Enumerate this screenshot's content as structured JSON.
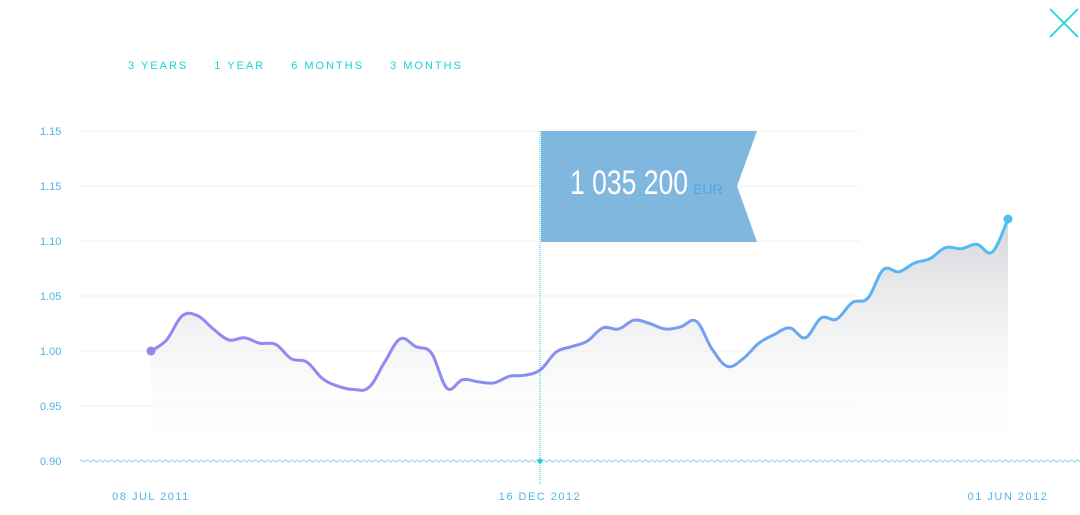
{
  "tabs": [
    {
      "label": "3 YEARS"
    },
    {
      "label": "1 YEAR"
    },
    {
      "label": "6 MONTHS"
    },
    {
      "label": "3 MONTHS"
    }
  ],
  "close_icon": "close-icon",
  "colors": {
    "accent": "#19d3d6",
    "axis_text": "#4fb4e8",
    "line_start": "#9b84f0",
    "line_end": "#4cc0f2",
    "flag": "#7fb7df",
    "area": "#d8d9de"
  },
  "tooltip": {
    "value": "1 035 200",
    "unit": "EUR",
    "date": "16 DEC 2012"
  },
  "chart_data": {
    "type": "area",
    "y_ticks": [
      "1.15",
      "1.15",
      "1.10",
      "1.05",
      "1.00",
      "0.95",
      "0.90"
    ],
    "ylim": [
      0.9,
      1.15
    ],
    "x_labels": [
      "08 JUL 2011",
      "16 DEC 2012",
      "01 JUN 2012"
    ],
    "grid": true,
    "series": [
      {
        "values": [
          1.0,
          1.01,
          1.032,
          1.032,
          1.02,
          1.01,
          1.012,
          1.007,
          1.006,
          0.993,
          0.99,
          0.975,
          0.968,
          0.965,
          0.967,
          0.99,
          1.011,
          1.004,
          0.998,
          0.966,
          0.974,
          0.972,
          0.971,
          0.977,
          0.978,
          0.983,
          0.999,
          1.004,
          1.009,
          1.021,
          1.02,
          1.028,
          1.025,
          1.02,
          1.022,
          1.027,
          1.002,
          0.986,
          0.993,
          1.007,
          1.015,
          1.021,
          1.012,
          1.03,
          1.029,
          1.044,
          1.048,
          1.074,
          1.072,
          1.08,
          1.084,
          1.094,
          1.093,
          1.097,
          1.09,
          1.12
        ]
      }
    ]
  }
}
